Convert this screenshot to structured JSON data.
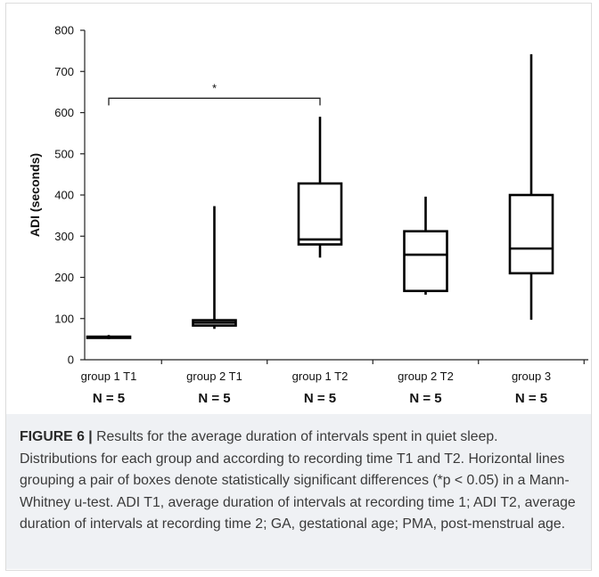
{
  "chart_data": {
    "type": "box",
    "ylabel": "ADI (seconds)",
    "xlabel": "",
    "ylim": [
      0,
      800
    ],
    "yticks": [
      0,
      100,
      200,
      300,
      400,
      500,
      600,
      700,
      800
    ],
    "grid": false,
    "categories": [
      "group 1 T1",
      "group 2 T1",
      "group 1 T2",
      "group 2 T2",
      "group 3"
    ],
    "n_labels": [
      "N = 5",
      "N = 5",
      "N = 5",
      "N = 5",
      "N = 5"
    ],
    "boxes": [
      {
        "category": "group 1 T1",
        "min": 50,
        "q1": 53,
        "median": 55,
        "q3": 56,
        "max": 60
      },
      {
        "category": "group 2 T1",
        "min": 75,
        "q1": 83,
        "median": 90,
        "q3": 96,
        "max": 373
      },
      {
        "category": "group 1 T2",
        "min": 248,
        "q1": 280,
        "median": 292,
        "q3": 428,
        "max": 590
      },
      {
        "category": "group 2 T2",
        "min": 158,
        "q1": 167,
        "median": 255,
        "q3": 312,
        "max": 396
      },
      {
        "category": "group 3",
        "min": 97,
        "q1": 210,
        "median": 270,
        "q3": 400,
        "max": 742
      }
    ],
    "significance": [
      {
        "from": "group 1 T1",
        "to": "group 1 T2",
        "level": 635,
        "label": "*"
      }
    ]
  },
  "caption": {
    "label": "FIGURE 6 |",
    "text": "Results for the average duration of intervals spent in quiet sleep. Distributions for each group and according to recording time T1 and T2. Horizontal lines grouping a pair of boxes denote statistically significant differences (*p < 0.05) in a Mann-Whitney u-test. ADI T1, average duration of intervals at recording time 1; ADI T2, average duration of intervals at recording time 2; GA, gestational age; PMA, post-menstrual age."
  }
}
